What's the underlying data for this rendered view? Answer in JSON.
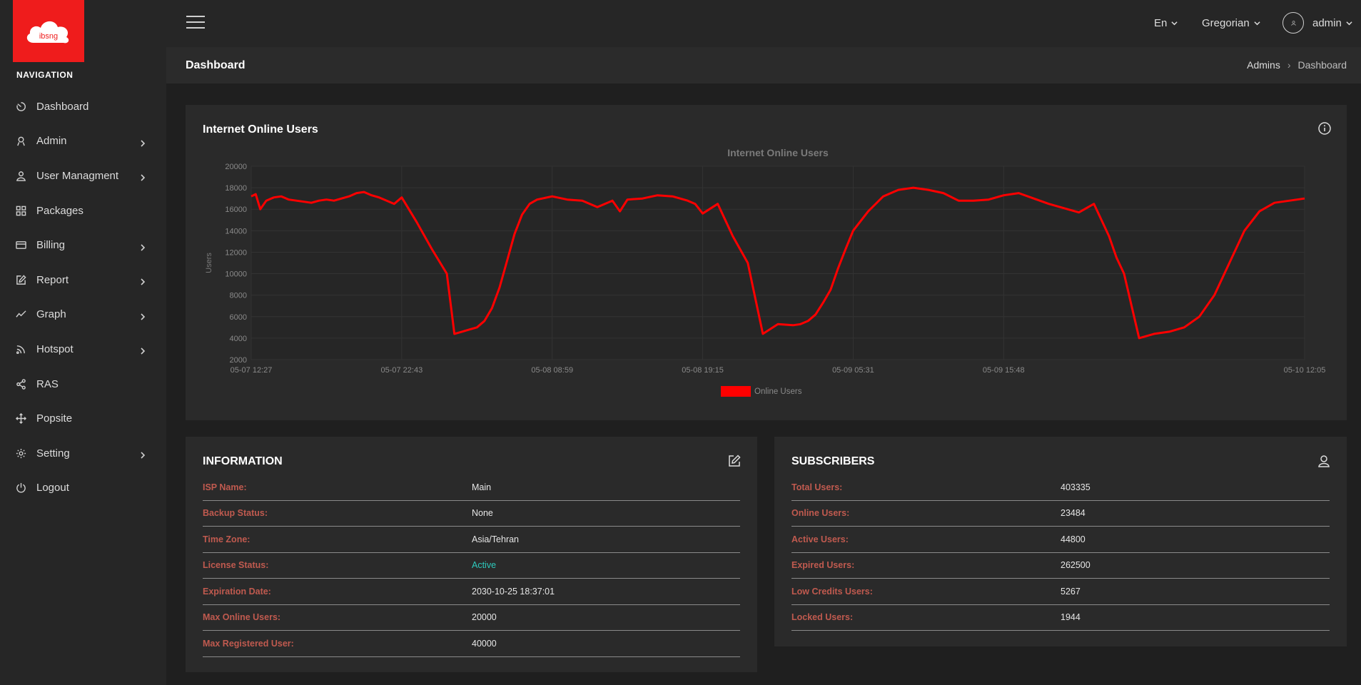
{
  "app": {
    "logo_text": "ibsng"
  },
  "sidebar": {
    "title": "NAVIGATION",
    "items": [
      {
        "label": "Dashboard",
        "icon": "dashboard-icon",
        "submenu": false
      },
      {
        "label": "Admin",
        "icon": "admin-icon",
        "submenu": true
      },
      {
        "label": "User Managment",
        "icon": "user-icon",
        "submenu": true
      },
      {
        "label": "Packages",
        "icon": "packages-icon",
        "submenu": false
      },
      {
        "label": "Billing",
        "icon": "billing-icon",
        "submenu": true
      },
      {
        "label": "Report",
        "icon": "report-icon",
        "submenu": true
      },
      {
        "label": "Graph",
        "icon": "graph-icon",
        "submenu": true
      },
      {
        "label": "Hotspot",
        "icon": "hotspot-icon",
        "submenu": true
      },
      {
        "label": "RAS",
        "icon": "share-icon",
        "submenu": false
      },
      {
        "label": "Popsite",
        "icon": "move-icon",
        "submenu": false
      },
      {
        "label": "Setting",
        "icon": "gear-icon",
        "submenu": true
      },
      {
        "label": "Logout",
        "icon": "power-icon",
        "submenu": false
      }
    ]
  },
  "topbar": {
    "language": "En",
    "calendar": "Gregorian",
    "username": "admin"
  },
  "page": {
    "title": "Dashboard",
    "breadcrumb": [
      "Admins",
      "Dashboard"
    ]
  },
  "chart_card": {
    "title": "Internet Online Users"
  },
  "chart_data": {
    "type": "line",
    "title": "Internet Online Users",
    "xlabel": "",
    "ylabel": "Users",
    "x_ticks": [
      "05-07 12:27",
      "05-07 22:43",
      "05-08 08:59",
      "05-08 19:15",
      "05-09 05:31",
      "05-09 15:48",
      "05-10 12:05"
    ],
    "ylim": [
      2000,
      20000
    ],
    "y_ticks": [
      2000,
      4000,
      6000,
      8000,
      10000,
      12000,
      14000,
      16000,
      18000,
      20000
    ],
    "grid": true,
    "legend": "bottom",
    "series": [
      {
        "name": "Online Users",
        "color": "#ff0000",
        "x": [
          0,
          0.03,
          0.06,
          0.1,
          0.15,
          0.2,
          0.25,
          0.3,
          0.35,
          0.4,
          0.45,
          0.5,
          0.55,
          0.6,
          0.65,
          0.7,
          0.75,
          0.8,
          0.85,
          0.9,
          0.95,
          1.0,
          1.1,
          1.2,
          1.3,
          1.35,
          1.4,
          1.45,
          1.5,
          1.55,
          1.6,
          1.65,
          1.7,
          1.75,
          1.8,
          1.85,
          1.9,
          2.0,
          2.1,
          2.2,
          2.3,
          2.4,
          2.45,
          2.5,
          2.6,
          2.7,
          2.8,
          2.9,
          2.95,
          3.0,
          3.1,
          3.2,
          3.3,
          3.4,
          3.5,
          3.6,
          3.65,
          3.7,
          3.75,
          3.8,
          3.85,
          3.9,
          3.95,
          4.0,
          4.1,
          4.2,
          4.3,
          4.4,
          4.5,
          4.6,
          4.7,
          4.8,
          4.9,
          5.0,
          5.1,
          5.2,
          5.3,
          5.4,
          5.5,
          5.6,
          5.7,
          5.75,
          5.8,
          5.9,
          6.0,
          6.1,
          6.2,
          6.3,
          6.4,
          6.5,
          6.6,
          6.7,
          6.8,
          6.9,
          7.0
        ],
        "values": [
          17200,
          17400,
          16000,
          16800,
          17100,
          17200,
          16900,
          16800,
          16700,
          16600,
          16800,
          16900,
          16800,
          17000,
          17200,
          17500,
          17600,
          17300,
          17100,
          16800,
          16500,
          17100,
          14800,
          12300,
          10000,
          4400,
          4600,
          4800,
          5000,
          5600,
          6800,
          8700,
          11200,
          13700,
          15500,
          16500,
          16900,
          17200,
          16900,
          16800,
          16200,
          16800,
          15800,
          16900,
          17000,
          17300,
          17200,
          16800,
          16500,
          15600,
          16500,
          13500,
          11000,
          4400,
          5300,
          5200,
          5300,
          5600,
          6200,
          7300,
          8500,
          10500,
          12300,
          14000,
          15800,
          17200,
          17800,
          18000,
          17800,
          17500,
          16800,
          16800,
          16900,
          17300,
          17500,
          17000,
          16500,
          16100,
          15700,
          16500,
          13500,
          11500,
          10000,
          4000,
          4400,
          4600,
          5000,
          6000,
          8000,
          11000,
          14000,
          15800,
          16600,
          16800,
          17000
        ]
      }
    ]
  },
  "information": {
    "title": "INFORMATION",
    "rows": [
      {
        "key": "ISP Name:",
        "value": "Main"
      },
      {
        "key": "Backup Status:",
        "value": "None"
      },
      {
        "key": "Time Zone:",
        "value": "Asia/Tehran"
      },
      {
        "key": "License Status:",
        "value": "Active"
      },
      {
        "key": "Expiration Date:",
        "value": "2030-10-25 18:37:01"
      },
      {
        "key": "Max Online Users:",
        "value": "20000"
      },
      {
        "key": "Max Registered User:",
        "value": "40000"
      }
    ]
  },
  "subscribers": {
    "title": "SUBSCRIBERS",
    "rows": [
      {
        "key": "Total Users:",
        "value": "403335"
      },
      {
        "key": "Online Users:",
        "value": "23484"
      },
      {
        "key": "Active Users:",
        "value": "44800"
      },
      {
        "key": "Expired Users:",
        "value": "262500"
      },
      {
        "key": "Low Credits Users:",
        "value": "5267"
      },
      {
        "key": "Locked Users:",
        "value": "1944"
      }
    ]
  }
}
